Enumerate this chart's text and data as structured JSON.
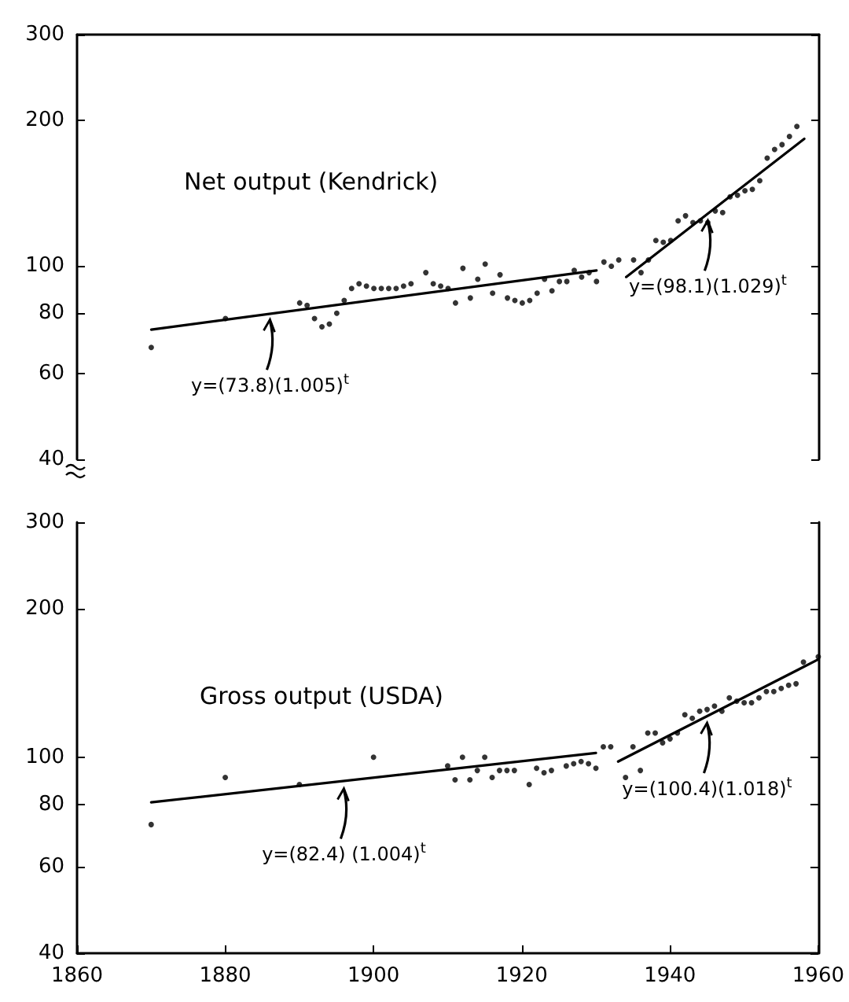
{
  "chart_data": [
    {
      "type": "scatter",
      "title": "Net output (Kendrick)",
      "xlim": [
        1860,
        1960
      ],
      "xticks": [
        1860,
        1880,
        1900,
        1920,
        1940,
        1960
      ],
      "ylim": [
        40,
        300
      ],
      "yticks": [
        40,
        60,
        80,
        100,
        200,
        300
      ],
      "log": "y",
      "tick_labels": "y",
      "series": [
        {
          "type": "scatter",
          "marker": "circle",
          "color": "#000000",
          "x": [
            1870,
            1880,
            1890,
            1891,
            1892,
            1893,
            1894,
            1895,
            1896,
            1897,
            1898,
            1899,
            1900,
            1901,
            1902,
            1903,
            1904,
            1905,
            1907,
            1908,
            1909,
            1910,
            1911,
            1912,
            1913,
            1914,
            1915,
            1916,
            1917,
            1918,
            1919,
            1920,
            1921,
            1922,
            1923,
            1924,
            1925,
            1926,
            1927,
            1928,
            1929,
            1930,
            1931,
            1932,
            1933,
            1935,
            1936,
            1937,
            1938,
            1939,
            1940,
            1941,
            1942,
            1943,
            1944,
            1945,
            1946,
            1947,
            1948,
            1949,
            1950,
            1951,
            1952,
            1953,
            1954,
            1955,
            1956,
            1957
          ],
          "values": [
            68,
            78,
            84,
            83,
            78,
            75,
            76,
            80,
            85,
            90,
            92,
            91,
            90,
            90,
            90,
            90,
            91,
            92,
            97,
            92,
            91,
            90,
            84,
            99,
            86,
            94,
            101,
            88,
            96,
            86,
            85,
            84,
            85,
            88,
            94,
            89,
            93,
            93,
            98,
            95,
            97,
            93,
            102,
            100,
            103,
            103,
            97,
            103,
            113,
            112,
            113,
            124,
            127,
            123,
            124,
            123,
            130,
            129,
            139,
            140,
            143,
            144,
            150,
            167,
            174,
            178,
            185,
            194
          ]
        },
        {
          "type": "line",
          "marker": "none",
          "line_style": "solid",
          "color": "#000000",
          "x": [
            1870,
            1930
          ],
          "values": [
            74,
            98
          ]
        },
        {
          "type": "line",
          "marker": "none",
          "line_style": "solid",
          "color": "#000000",
          "x": [
            1934,
            1958
          ],
          "values": [
            95,
            183
          ]
        }
      ],
      "annotations": [
        {
          "text": "y=(73.8)(1.005)$^{t}$",
          "x": 1886,
          "y": 80
        },
        {
          "text": "y=(98.1)(1.029)$^{t}$",
          "x": 1945,
          "y": 128
        }
      ]
    },
    {
      "type": "scatter",
      "title": "Gross output (USDA)",
      "xlim": [
        1860,
        1960
      ],
      "xticks": [
        1860,
        1880,
        1900,
        1920,
        1940,
        1960
      ],
      "ylim": [
        40,
        300
      ],
      "yticks": [
        40,
        60,
        80,
        100,
        200,
        300
      ],
      "log": "y",
      "series": [
        {
          "type": "scatter",
          "marker": "circle",
          "color": "#000000",
          "x": [
            1870,
            1880,
            1890,
            1900,
            1910,
            1911,
            1912,
            1913,
            1914,
            1915,
            1916,
            1917,
            1918,
            1919,
            1921,
            1922,
            1923,
            1924,
            1926,
            1927,
            1928,
            1929,
            1930,
            1931,
            1932,
            1934,
            1935,
            1936,
            1937,
            1938,
            1939,
            1940,
            1941,
            1942,
            1943,
            1944,
            1945,
            1946,
            1947,
            1948,
            1949,
            1950,
            1951,
            1952,
            1953,
            1954,
            1955,
            1956,
            1957,
            1958,
            1960
          ],
          "values": [
            73,
            91,
            88,
            100,
            96,
            90,
            100,
            90,
            94,
            100,
            91,
            94,
            94,
            94,
            88,
            95,
            93,
            94,
            96,
            97,
            98,
            97,
            95,
            105,
            105,
            91,
            105,
            94,
            112,
            112,
            107,
            109,
            112,
            122,
            120,
            124,
            125,
            127,
            124,
            132,
            130,
            129,
            129,
            132,
            136,
            136,
            138,
            140,
            141,
            156,
            160
          ]
        },
        {
          "type": "line",
          "marker": "none",
          "line_style": "solid",
          "color": "#000000",
          "x": [
            1870,
            1930
          ],
          "values": [
            81,
            102
          ]
        },
        {
          "type": "line",
          "marker": "none",
          "line_style": "solid",
          "color": "#000000",
          "x": [
            1933,
            1960
          ],
          "values": [
            98,
            158
          ]
        }
      ],
      "annotations": [
        {
          "text": "y=(82.4) (1.004)$^{t}$",
          "x": 1896,
          "y": 89
        },
        {
          "text": "y=(100.4)(1.018)$^{t}$",
          "x": 1945,
          "y": 121
        }
      ]
    }
  ]
}
